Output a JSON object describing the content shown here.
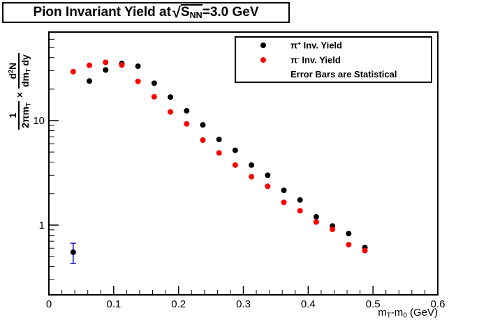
{
  "title": {
    "prefix": "Pion Invariant Yield at ",
    "radical": "√",
    "radicand": "S",
    "radicand_sub": "NN",
    "suffix": "=3.0 GeV"
  },
  "legend": {
    "entries": [
      {
        "pi": "π",
        "sup": "+",
        "rest": " Inv. Yield",
        "color": "#000000"
      },
      {
        "pi": "π",
        "sup": "-",
        "rest": " Inv. Yield",
        "color": "#ff0000"
      }
    ],
    "note": "Error Bars are Statistical"
  },
  "axes": {
    "x": {
      "title": {
        "p1": "m",
        "sub1": "T",
        "p2": "-m",
        "sub2": "0",
        "p3": " (GeV)"
      },
      "min": 0,
      "max": 0.6,
      "minor_step": 0.02,
      "major_ticks": [
        {
          "v": 0,
          "label": "0"
        },
        {
          "v": 0.1,
          "label": "0.1"
        },
        {
          "v": 0.2,
          "label": "0.2"
        },
        {
          "v": 0.3,
          "label": "0.3"
        },
        {
          "v": 0.4,
          "label": "0.4"
        },
        {
          "v": 0.5,
          "label": "0.5"
        },
        {
          "v": 0.6,
          "label": "0.6"
        }
      ]
    },
    "y": {
      "title": {
        "num1": "1",
        "den1": "2πm",
        "den1_sub": "T",
        "times": "×",
        "num2_d": "d",
        "num2_sup": "2",
        "num2_n": "N",
        "den2": "dm",
        "den2_sub": "T",
        "den2_tail": " dy"
      },
      "scale": "log",
      "min": 0.215,
      "max": 70.3,
      "major_ticks": [
        {
          "v": 1,
          "label": "1"
        },
        {
          "v": 10,
          "label": "10"
        }
      ]
    }
  },
  "chart_data": {
    "type": "scatter",
    "title": "Pion Invariant Yield at sqrt(S_NN)=3.0 GeV",
    "xlabel": "mT-m0 (GeV)",
    "ylabel": "1/(2*pi*mT) x d2N/(dmT dy)",
    "xlim": [
      0,
      0.6
    ],
    "ylim": [
      0.215,
      70.3
    ],
    "yscale": "log",
    "grid": false,
    "legend_position": "top-right",
    "note": "Error Bars are Statistical",
    "x": [
      0.0375,
      0.0625,
      0.0875,
      0.1125,
      0.1375,
      0.1625,
      0.1875,
      0.2125,
      0.2375,
      0.2625,
      0.2875,
      0.3125,
      0.3375,
      0.3625,
      0.3875,
      0.4125,
      0.4375,
      0.4625,
      0.4875
    ],
    "series": [
      {
        "name": "pi+ Inv. Yield",
        "color": "#000000",
        "values": [
          0.55,
          23.9,
          30.5,
          35.2,
          33.1,
          22.8,
          16.8,
          12.4,
          9.1,
          6.6,
          5.2,
          3.75,
          3.0,
          2.15,
          1.74,
          1.2,
          0.98,
          0.83,
          0.61
        ],
        "errors": [
          {
            "index": 0,
            "low": 0.43,
            "high": 0.67
          }
        ]
      },
      {
        "name": "pi- Inv. Yield",
        "color": "#ff0000",
        "values": [
          29.4,
          33.8,
          36.1,
          34.0,
          23.7,
          16.9,
          12.1,
          9.3,
          6.5,
          4.9,
          3.75,
          2.9,
          2.35,
          1.65,
          1.37,
          1.07,
          0.91,
          0.65,
          0.57
        ],
        "errors": []
      }
    ],
    "error_bar_color": "#0000cc",
    "marker_radius": 4
  }
}
